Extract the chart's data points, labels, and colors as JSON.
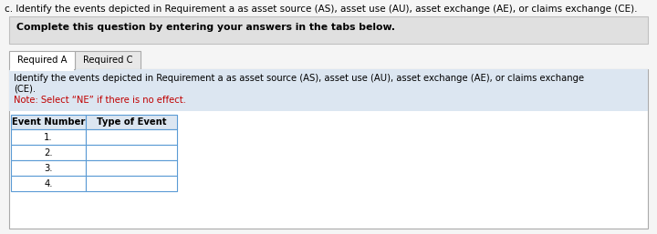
{
  "title_text": "c. Identify the events depicted in Requirement a as asset source (AS), asset use (AU), asset exchange (AE), or claims exchange (CE).",
  "complete_box_text": "Complete this question by entering your answers in the tabs below.",
  "tab1": "Required A",
  "tab2": "Required C",
  "instruction_line1": "Identify the events depicted in Requirement a as asset source (AS), asset use (AU), asset exchange (AE), or claims exchange",
  "instruction_line2": "(CE).",
  "note_text": "Note: Select “NE” if there is no effect.",
  "table_header_col1": "Event Number",
  "table_header_col2": "Type of Event",
  "event_numbers": [
    "1.",
    "2.",
    "3.",
    "4."
  ],
  "bg_color": "#f5f5f5",
  "complete_box_bg": "#e0e0e0",
  "tab_active_bg": "#ffffff",
  "tab_inactive_bg": "#e8e8e8",
  "instruction_bg": "#dce6f1",
  "table_header_bg": "#dce6f1",
  "table_row_bg": "#ffffff",
  "note_color": "#c00000",
  "border_color": "#aaaaaa",
  "table_border_color": "#5b9bd5",
  "title_fontsize": 7.5,
  "complete_fontsize": 7.8,
  "tab_fontsize": 7.2,
  "instruction_fontsize": 7.2,
  "table_fontsize": 7.2
}
